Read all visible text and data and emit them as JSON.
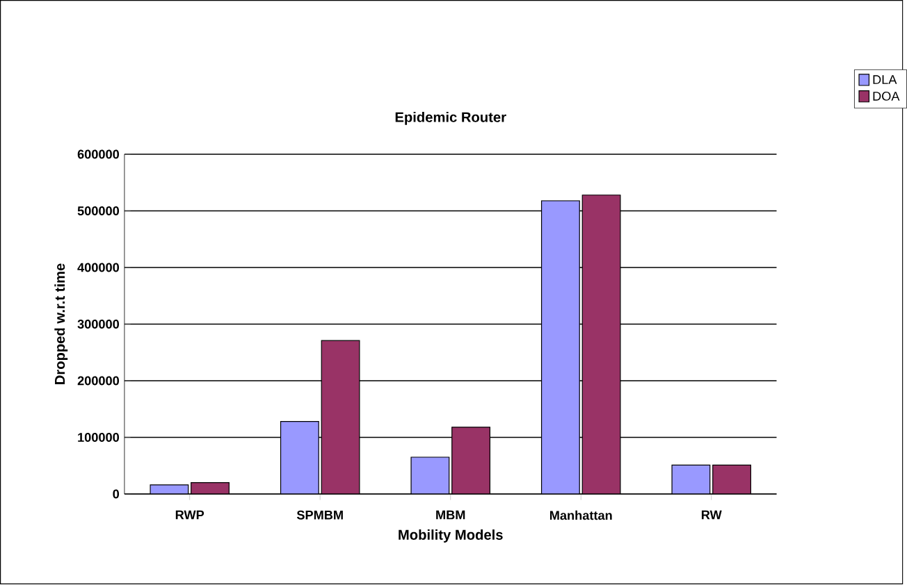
{
  "chart_data": {
    "type": "bar",
    "title": "Epidemic Router",
    "xlabel": "Mobility Models",
    "ylabel": "Dropped  w.r.t time",
    "categories": [
      "RWP",
      "SPMBM",
      "MBM",
      "Manhattan",
      "RW"
    ],
    "series": [
      {
        "name": "DLA",
        "color": "#9999ff",
        "values": [
          16000,
          128000,
          65000,
          518000,
          51000
        ]
      },
      {
        "name": "DOA",
        "color": "#993366",
        "values": [
          20000,
          271000,
          118000,
          528000,
          51000
        ]
      }
    ],
    "ylim": [
      0,
      600000
    ],
    "yticks": [
      0,
      100000,
      200000,
      300000,
      400000,
      500000,
      600000
    ],
    "grid": "y",
    "legend": "top right"
  }
}
